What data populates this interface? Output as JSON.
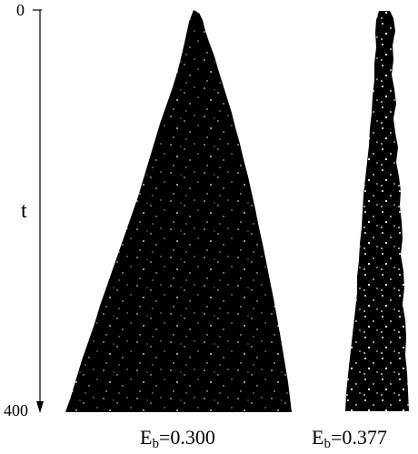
{
  "axis": {
    "name": "t",
    "top_tick": "0",
    "bottom_tick": "400",
    "direction": "down"
  },
  "panels": [
    {
      "label_main": "E",
      "label_sub": "b",
      "label_value": "=0.300",
      "shape": "wide-triangle"
    },
    {
      "label_main": "E",
      "label_sub": "b",
      "label_value": "=0.377",
      "shape": "narrow-column"
    }
  ],
  "colors": {
    "ink": "#000000",
    "paper": "#ffffff"
  }
}
